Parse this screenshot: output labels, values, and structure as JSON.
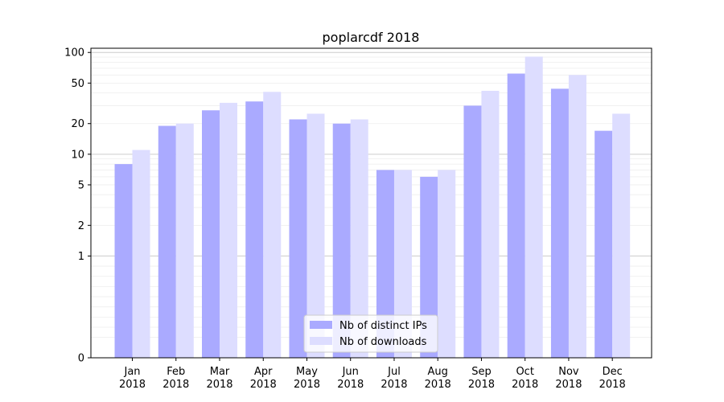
{
  "chart_data": {
    "type": "bar",
    "title": "poplarcdf 2018",
    "xlabel": "",
    "ylabel": "",
    "yscale": "symlog",
    "ylim": [
      0,
      110
    ],
    "yticks": [
      0,
      1,
      2,
      5,
      10,
      20,
      50,
      100
    ],
    "grid": "y",
    "legend_position": "bottom-center",
    "categories": [
      [
        "Jan",
        "2018"
      ],
      [
        "Feb",
        "2018"
      ],
      [
        "Mar",
        "2018"
      ],
      [
        "Apr",
        "2018"
      ],
      [
        "May",
        "2018"
      ],
      [
        "Jun",
        "2018"
      ],
      [
        "Jul",
        "2018"
      ],
      [
        "Aug",
        "2018"
      ],
      [
        "Sep",
        "2018"
      ],
      [
        "Oct",
        "2018"
      ],
      [
        "Nov",
        "2018"
      ],
      [
        "Dec",
        "2018"
      ]
    ],
    "series": [
      {
        "name": "Nb of distinct IPs",
        "color": "#aaaaff",
        "values": [
          8,
          19,
          27,
          33,
          22,
          20,
          7,
          6,
          30,
          62,
          44,
          17
        ]
      },
      {
        "name": "Nb of downloads",
        "color": "#ddddff",
        "values": [
          11,
          20,
          32,
          41,
          25,
          22,
          7,
          7,
          42,
          91,
          60,
          25
        ]
      }
    ]
  }
}
